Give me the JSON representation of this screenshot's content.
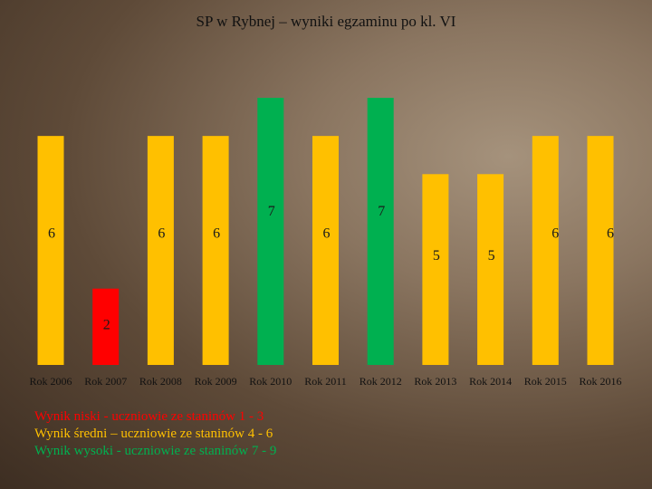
{
  "chart_data": {
    "type": "bar",
    "title": "SP w Rybnej – wyniki egzaminu po kl. VI",
    "categories": [
      "Rok 2006",
      "Rok 2007",
      "Rok 2008",
      "Rok 2009",
      "Rok 2010",
      "Rok 2011",
      "Rok 2012",
      "Rok 2013",
      "Rok 2014",
      "Rok 2015",
      "Rok 2016"
    ],
    "values": [
      6,
      2,
      6,
      6,
      7,
      6,
      7,
      5,
      5,
      6,
      6
    ],
    "bar_colors": [
      "#ffc000",
      "#ff0000",
      "#ffc000",
      "#ffc000",
      "#00b050",
      "#ffc000",
      "#00b050",
      "#ffc000",
      "#ffc000",
      "#ffc000",
      "#ffc000"
    ],
    "ylim": [
      0,
      7
    ],
    "xlabel": "",
    "ylabel": "",
    "grid": false,
    "legend": [
      {
        "text": "Wynik niski - uczniowie ze staninów 1 - 3",
        "color": "#ff0000"
      },
      {
        "text": "Wynik średni – uczniowie ze staninów 4 - 6",
        "color": "#ffc000"
      },
      {
        "text": "Wynik wysoki - uczniowie ze staninów 7 - 9",
        "color": "#00b050"
      }
    ]
  }
}
